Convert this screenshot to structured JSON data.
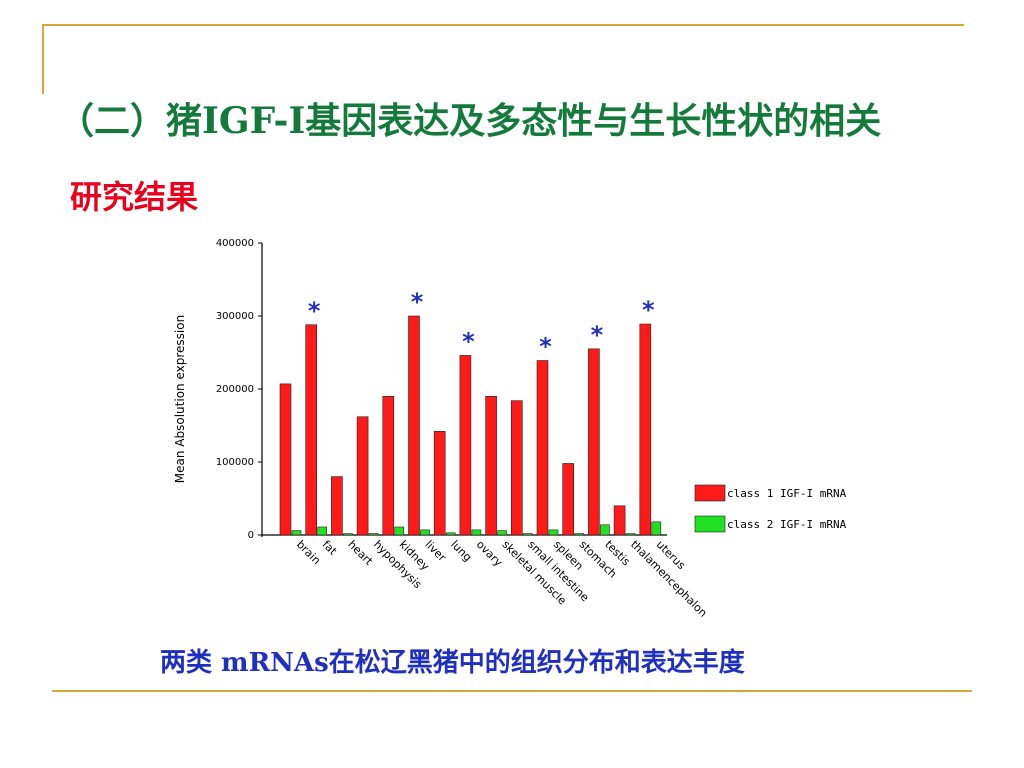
{
  "slide": {
    "title": "（二）猪IGF-I基因表达及多态性与生长性状的相关",
    "subtitle": "研究结果",
    "caption": "两类 mRNAs在松辽黑猪中的组织分布和表达丰度"
  },
  "colors": {
    "title": "#137a3a",
    "subtitle": "#e8001c",
    "caption": "#1f2fbf",
    "accent_lines": "#d9a43a",
    "class1": "#ff1a1a",
    "class2": "#22e022",
    "star": "#1f2fbf"
  },
  "chart_data": {
    "type": "bar",
    "ylabel": "Mean Absolution expression",
    "xlabel": "",
    "ylim": [
      0,
      400000
    ],
    "yticks": [
      "0",
      "100000",
      "200000",
      "300000",
      "400000"
    ],
    "categories": [
      "brain",
      "fat",
      "heart",
      "hypophysis",
      "kidney",
      "liver",
      "lung",
      "ovary",
      "skeletal muscle",
      "small intestine",
      "spleen",
      "stomach",
      "testis",
      "thalamencephalon",
      "uterus"
    ],
    "series": [
      {
        "name": "class 1 IGF-I mRNA",
        "color": "#ff1a1a",
        "values": [
          207000,
          288000,
          80000,
          162000,
          190000,
          300000,
          142000,
          246000,
          190000,
          184000,
          239000,
          98000,
          255000,
          40000,
          289000
        ]
      },
      {
        "name": "class 2 IGF-I mRNA",
        "color": "#22e022",
        "values": [
          6000,
          11000,
          2000,
          2000,
          11000,
          7000,
          3000,
          7000,
          6000,
          2000,
          7000,
          2000,
          14000,
          2000,
          18000
        ]
      }
    ],
    "significant_marker": "*",
    "significant_indices": [
      1,
      5,
      7,
      10,
      12,
      14
    ],
    "legend": "right"
  }
}
